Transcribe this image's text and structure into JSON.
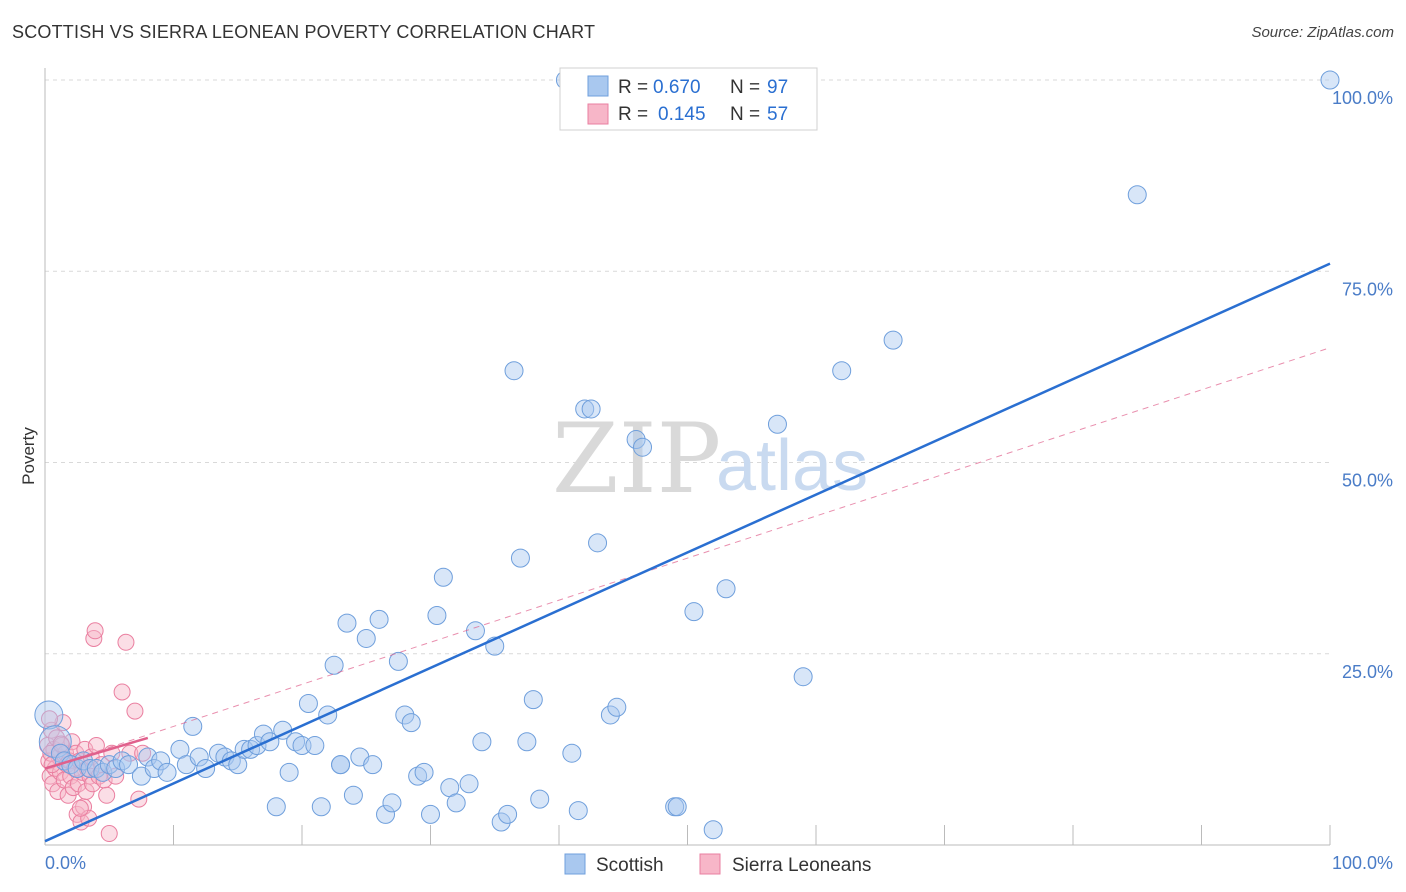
{
  "title": "SCOTTISH VS SIERRA LEONEAN POVERTY CORRELATION CHART",
  "source": "Source: ZipAtlas.com",
  "watermark": {
    "zip": "ZIP",
    "atlas": "atlas"
  },
  "legend": {
    "row1": {
      "r_label": "R = ",
      "r_value": "0.670",
      "n_label": "N = ",
      "n_value": "97"
    },
    "row2": {
      "r_label": "R = ",
      "r_value": "0.145",
      "n_label": "N = ",
      "n_value": "57"
    }
  },
  "bottom_legend": {
    "scottish": "Scottish",
    "sierra": "Sierra Leoneans"
  },
  "colors": {
    "blue_fill": "#a9c8ef",
    "blue_stroke": "#6f9fdc",
    "blue_line": "#2a6fd1",
    "pink_fill": "#f7b6c8",
    "pink_stroke": "#ea7fa0",
    "pink_line": "#e0608c",
    "tick": "#4a7cc7",
    "grid": "#d9d9d9"
  },
  "chart_data": {
    "type": "scatter",
    "title": "SCOTTISH VS SIERRA LEONEAN POVERTY CORRELATION CHART",
    "xlabel": "",
    "ylabel": "Poverty",
    "xlim": [
      0,
      100
    ],
    "ylim": [
      0,
      100
    ],
    "x_tick_labels": [
      "0.0%",
      "100.0%"
    ],
    "y_tick_labels": [
      "25.0%",
      "50.0%",
      "75.0%",
      "100.0%"
    ],
    "y_tick_values": [
      25,
      50,
      75,
      100
    ],
    "grid": true,
    "legend_placement": "top-center",
    "series": [
      {
        "name": "Scottish",
        "color": "#6f9fdc",
        "R": 0.67,
        "N": 97,
        "trend": {
          "x": [
            0,
            100
          ],
          "y": [
            0.5,
            76
          ]
        },
        "points": [
          [
            0.3,
            17
          ],
          [
            0.8,
            13.5
          ],
          [
            1.2,
            12
          ],
          [
            1.5,
            11
          ],
          [
            2,
            10.5
          ],
          [
            2.5,
            10
          ],
          [
            3,
            11
          ],
          [
            3.5,
            10
          ],
          [
            4,
            10
          ],
          [
            4.5,
            9.5
          ],
          [
            5,
            10.5
          ],
          [
            5.5,
            10
          ],
          [
            6,
            11
          ],
          [
            6.5,
            10.5
          ],
          [
            7.5,
            9
          ],
          [
            8,
            11.5
          ],
          [
            8.5,
            10
          ],
          [
            9,
            11
          ],
          [
            9.5,
            9.5
          ],
          [
            10.5,
            12.5
          ],
          [
            11,
            10.5
          ],
          [
            11.5,
            15.5
          ],
          [
            12,
            11.5
          ],
          [
            12.5,
            10
          ],
          [
            13.5,
            12
          ],
          [
            14,
            11.5
          ],
          [
            14.5,
            11
          ],
          [
            15,
            10.5
          ],
          [
            15.5,
            12.5
          ],
          [
            16,
            12.5
          ],
          [
            16.5,
            13
          ],
          [
            17,
            14.5
          ],
          [
            17.5,
            13.5
          ],
          [
            18,
            5
          ],
          [
            18.5,
            15
          ],
          [
            19,
            9.5
          ],
          [
            19.5,
            13.5
          ],
          [
            20,
            13
          ],
          [
            20.5,
            18.5
          ],
          [
            21,
            13
          ],
          [
            21.5,
            5
          ],
          [
            22,
            17
          ],
          [
            22.5,
            23.5
          ],
          [
            23,
            10.5
          ],
          [
            23.5,
            29
          ],
          [
            24,
            6.5
          ],
          [
            24.5,
            11.5
          ],
          [
            25,
            27
          ],
          [
            25.5,
            10.5
          ],
          [
            26,
            29.5
          ],
          [
            26.5,
            4
          ],
          [
            27,
            5.5
          ],
          [
            27.5,
            24
          ],
          [
            28,
            17
          ],
          [
            28.5,
            16
          ],
          [
            29,
            9
          ],
          [
            29.5,
            9.5
          ],
          [
            30,
            4
          ],
          [
            30.5,
            30
          ],
          [
            31,
            35
          ],
          [
            31.5,
            7.5
          ],
          [
            32,
            5.5
          ],
          [
            33,
            8
          ],
          [
            33.5,
            28
          ],
          [
            34,
            13.5
          ],
          [
            35,
            26
          ],
          [
            35.5,
            3
          ],
          [
            36,
            4
          ],
          [
            36.5,
            62
          ],
          [
            37,
            37.5
          ],
          [
            37.5,
            13.5
          ],
          [
            38,
            19
          ],
          [
            38.5,
            6
          ],
          [
            41,
            12
          ],
          [
            41.5,
            4.5
          ],
          [
            42,
            57
          ],
          [
            42.5,
            57
          ],
          [
            43,
            39.5
          ],
          [
            44,
            17
          ],
          [
            44.5,
            18
          ],
          [
            46,
            53
          ],
          [
            46.5,
            52
          ],
          [
            49,
            5
          ],
          [
            49.2,
            5
          ],
          [
            50.5,
            30.5
          ],
          [
            52,
            2
          ],
          [
            53,
            33.5
          ],
          [
            57,
            55
          ],
          [
            59,
            22
          ],
          [
            62,
            62
          ],
          [
            66,
            66
          ],
          [
            85,
            85
          ],
          [
            100,
            100
          ],
          [
            50,
            100
          ],
          [
            58,
            100
          ],
          [
            40.5,
            100
          ],
          [
            23,
            10.5
          ]
        ]
      },
      {
        "name": "Sierra Leoneans",
        "color": "#ea7fa0",
        "R": 0.145,
        "N": 57,
        "trend": {
          "x": [
            0,
            8
          ],
          "y": [
            10,
            14
          ]
        },
        "dashed_trend": {
          "x": [
            0,
            100
          ],
          "y": [
            10,
            65
          ]
        },
        "points": [
          [
            0.2,
            13
          ],
          [
            0.3,
            11
          ],
          [
            0.4,
            9
          ],
          [
            0.5,
            15
          ],
          [
            0.6,
            8
          ],
          [
            0.7,
            12.5
          ],
          [
            0.8,
            10
          ],
          [
            0.9,
            14
          ],
          [
            1,
            7
          ],
          [
            1.1,
            11.5
          ],
          [
            1.2,
            9.5
          ],
          [
            1.3,
            13
          ],
          [
            1.4,
            16
          ],
          [
            1.5,
            8.5
          ],
          [
            1.6,
            12
          ],
          [
            1.7,
            10.5
          ],
          [
            1.8,
            6.5
          ],
          [
            1.9,
            11
          ],
          [
            2,
            9
          ],
          [
            2.1,
            13.5
          ],
          [
            2.2,
            7.5
          ],
          [
            2.3,
            10
          ],
          [
            2.4,
            12
          ],
          [
            2.5,
            4
          ],
          [
            2.6,
            8
          ],
          [
            2.7,
            11
          ],
          [
            2.8,
            3
          ],
          [
            2.9,
            9.5
          ],
          [
            3,
            5
          ],
          [
            3.1,
            12.5
          ],
          [
            3.2,
            7
          ],
          [
            3.3,
            10
          ],
          [
            3.4,
            3.5
          ],
          [
            3.5,
            9
          ],
          [
            3.6,
            11.5
          ],
          [
            3.7,
            8
          ],
          [
            3.8,
            27
          ],
          [
            3.9,
            28
          ],
          [
            4,
            13
          ],
          [
            4.2,
            9
          ],
          [
            4.4,
            10.5
          ],
          [
            4.6,
            8.5
          ],
          [
            4.8,
            6.5
          ],
          [
            5,
            1.5
          ],
          [
            5.2,
            12
          ],
          [
            5.5,
            9
          ],
          [
            6,
            20
          ],
          [
            6.3,
            26.5
          ],
          [
            6.6,
            12
          ],
          [
            7,
            17.5
          ],
          [
            7.3,
            6
          ],
          [
            7.6,
            12
          ],
          [
            0.35,
            16.5
          ],
          [
            0.45,
            12
          ],
          [
            0.55,
            10.5
          ],
          [
            1.25,
            13.2
          ],
          [
            2.75,
            4.8
          ]
        ]
      }
    ]
  }
}
